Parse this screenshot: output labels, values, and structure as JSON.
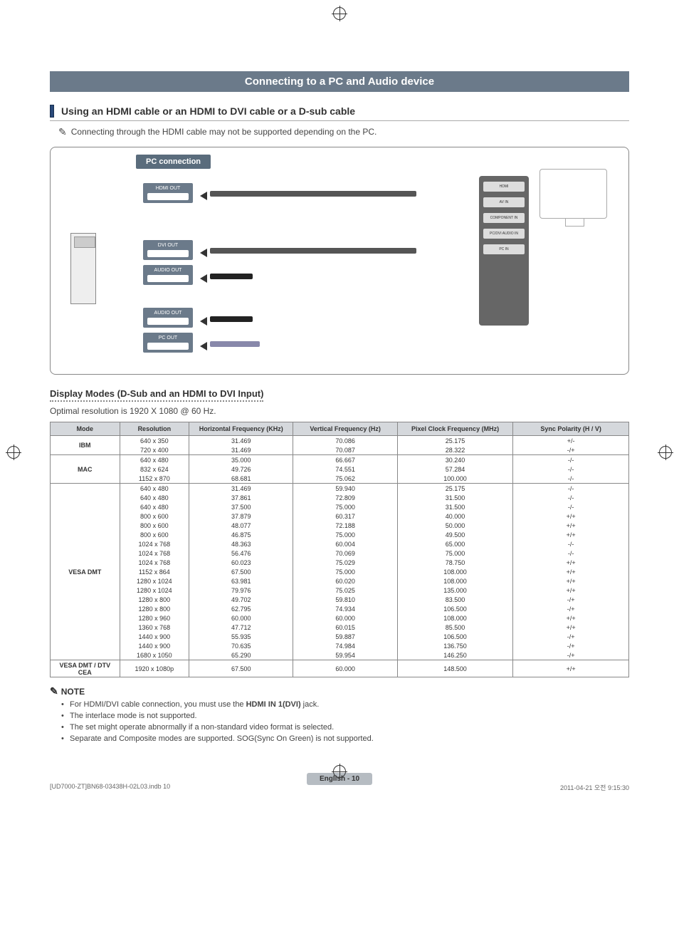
{
  "banner": "Connecting to a PC and Audio device",
  "subhead": "Using an HDMI cable or an HDMI to DVI cable or a D-sub cable",
  "note_top": "Connecting through the HDMI cable may not be supported depending on the PC.",
  "diagram": {
    "pc_connection": "PC connection",
    "hdmi_out": "HDMI OUT",
    "dvi_out": "DVI OUT",
    "audio_out": "AUDIO OUT",
    "pc_out": "PC OUT",
    "tv_ports": [
      "HDMI",
      "AV IN",
      "COMPONENT IN",
      "PC/DVI AUDIO IN",
      "PC IN"
    ]
  },
  "table_title": "Display Modes (D-Sub and an HDMI to DVI Input)",
  "optimal": "Optimal resolution is 1920 X 1080 @ 60 Hz.",
  "columns": [
    "Mode",
    "Resolution",
    "Horizontal Frequency (KHz)",
    "Vertical Frequency (Hz)",
    "Pixel Clock Frequency (MHz)",
    "Sync Polarity (H / V)"
  ],
  "col_widths": [
    "12%",
    "12%",
    "18%",
    "18%",
    "20%",
    "20%"
  ],
  "groups": [
    {
      "mode": "IBM",
      "rows": [
        [
          "640 x 350",
          "31.469",
          "70.086",
          "25.175",
          "+/-"
        ],
        [
          "720 x 400",
          "31.469",
          "70.087",
          "28.322",
          "-/+"
        ]
      ]
    },
    {
      "mode": "MAC",
      "rows": [
        [
          "640 x 480",
          "35.000",
          "66.667",
          "30.240",
          "-/-"
        ],
        [
          "832 x 624",
          "49.726",
          "74.551",
          "57.284",
          "-/-"
        ],
        [
          "1152 x 870",
          "68.681",
          "75.062",
          "100.000",
          "-/-"
        ]
      ]
    },
    {
      "mode": "VESA DMT",
      "rows": [
        [
          "640 x 480",
          "31.469",
          "59.940",
          "25.175",
          "-/-"
        ],
        [
          "640 x 480",
          "37.861",
          "72.809",
          "31.500",
          "-/-"
        ],
        [
          "640 x 480",
          "37.500",
          "75.000",
          "31.500",
          "-/-"
        ],
        [
          "800 x 600",
          "37.879",
          "60.317",
          "40.000",
          "+/+"
        ],
        [
          "800 x 600",
          "48.077",
          "72.188",
          "50.000",
          "+/+"
        ],
        [
          "800 x 600",
          "46.875",
          "75.000",
          "49.500",
          "+/+"
        ],
        [
          "1024 x 768",
          "48.363",
          "60.004",
          "65.000",
          "-/-"
        ],
        [
          "1024 x 768",
          "56.476",
          "70.069",
          "75.000",
          "-/-"
        ],
        [
          "1024 x 768",
          "60.023",
          "75.029",
          "78.750",
          "+/+"
        ],
        [
          "1152 x 864",
          "67.500",
          "75.000",
          "108.000",
          "+/+"
        ],
        [
          "1280 x 1024",
          "63.981",
          "60.020",
          "108.000",
          "+/+"
        ],
        [
          "1280 x 1024",
          "79.976",
          "75.025",
          "135.000",
          "+/+"
        ],
        [
          "1280 x 800",
          "49.702",
          "59.810",
          "83.500",
          "-/+"
        ],
        [
          "1280 x 800",
          "62.795",
          "74.934",
          "106.500",
          "-/+"
        ],
        [
          "1280 x 960",
          "60.000",
          "60.000",
          "108.000",
          "+/+"
        ],
        [
          "1360 x 768",
          "47.712",
          "60.015",
          "85.500",
          "+/+"
        ],
        [
          "1440 x 900",
          "55.935",
          "59.887",
          "106.500",
          "-/+"
        ],
        [
          "1440 x 900",
          "70.635",
          "74.984",
          "136.750",
          "-/+"
        ],
        [
          "1680 x 1050",
          "65.290",
          "59.954",
          "146.250",
          "-/+"
        ]
      ]
    },
    {
      "mode": "VESA DMT / DTV CEA",
      "rows": [
        [
          "1920 x 1080p",
          "67.500",
          "60.000",
          "148.500",
          "+/+"
        ]
      ]
    }
  ],
  "note_head": "NOTE",
  "notes": [
    "For HDMI/DVI cable connection, you must use the HDMI IN 1(DVI) jack.",
    "The interlace mode is not supported.",
    "The set might operate abnormally if a non-standard video format is selected.",
    "Separate and Composite modes are supported. SOG(Sync On Green) is not supported."
  ],
  "note_bold_fragment": "HDMI IN 1(DVI)",
  "page_label": "English - 10",
  "footer_left": "[UD7000-ZT]BN68-03438H-02L03.indb   10",
  "footer_right": "2011-04-21   오전 9:15:30",
  "colors": {
    "banner_bg": "#6b7a8a",
    "banner_fg": "#ffffff",
    "accent_bar": "#2a4a7a",
    "th_bg": "#d5d8dc",
    "border": "#888888",
    "text": "#333333",
    "foot_bg": "#b6bcc2"
  }
}
